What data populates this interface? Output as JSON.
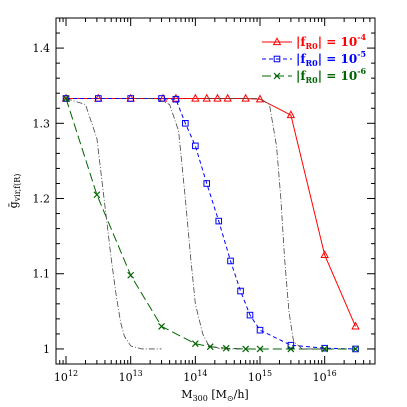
{
  "chart_data": {
    "type": "line",
    "xscale": "log",
    "xlim": [
      700000000000.0,
      6e+16
    ],
    "ylim": [
      0.98,
      1.44
    ],
    "xlabel": "M300 [M⊙/h]",
    "ylabel": "ḡvir,f(R)",
    "grid": false,
    "legend_position": "top-right",
    "x_ticks": [
      1000000000000.0,
      10000000000000.0,
      100000000000000.0,
      1000000000000000.0,
      1e+16
    ],
    "x_tick_labels": [
      {
        "base": "10",
        "exp": "12"
      },
      {
        "base": "10",
        "exp": "13"
      },
      {
        "base": "10",
        "exp": "14"
      },
      {
        "base": "10",
        "exp": "15"
      },
      {
        "base": "10",
        "exp": "16"
      }
    ],
    "y_ticks": [
      1.0,
      1.1,
      1.2,
      1.3,
      1.4
    ],
    "y_tick_labels": [
      "1",
      "1.1",
      "1.2",
      "1.3",
      "1.4"
    ],
    "series": [
      {
        "name": "|fR0| = 10⁻⁴",
        "legend": {
          "lhs": "|f",
          "sub": "R0",
          "rhs": "| = 10",
          "exp": "-4"
        },
        "color": "#ff0000",
        "marker": "triangle",
        "dash": "solid",
        "x": [
          1000000000000.0,
          3160000000000.0,
          10000000000000.0,
          31600000000000.0,
          50000000000000.0,
          100000000000000.0,
          150000000000000.0,
          220000000000000.0,
          316000000000000.0,
          600000000000000.0,
          1000000000000000.0,
          3000000000000000.0,
          1e+16,
          3e+16
        ],
        "y": [
          1.333,
          1.333,
          1.333,
          1.333,
          1.333,
          1.333,
          1.333,
          1.333,
          1.333,
          1.333,
          1.332,
          1.311,
          1.125,
          1.03
        ]
      },
      {
        "name": "|fR0| = 10⁻⁵",
        "legend": {
          "lhs": "|f",
          "sub": "R0",
          "rhs": "| = 10",
          "exp": "-5"
        },
        "color": "#0000ff",
        "marker": "square",
        "dash": "dashed",
        "x": [
          1000000000000.0,
          3160000000000.0,
          10000000000000.0,
          30000000000000.0,
          50000000000000.0,
          70000000000000.0,
          100000000000000.0,
          150000000000000.0,
          230000000000000.0,
          350000000000000.0,
          500000000000000.0,
          700000000000000.0,
          1000000000000000.0,
          3000000000000000.0,
          1e+16,
          3e+16
        ],
        "y": [
          1.333,
          1.333,
          1.333,
          1.333,
          1.332,
          1.3,
          1.27,
          1.22,
          1.17,
          1.117,
          1.077,
          1.045,
          1.025,
          1.005,
          1.001,
          1.0
        ]
      },
      {
        "name": "|fR0| = 10⁻⁶",
        "legend": {
          "lhs": "|f",
          "sub": "R0",
          "rhs": "| = 10",
          "exp": "-6"
        },
        "color": "#006400",
        "marker": "cross",
        "dash": "longdash",
        "x": [
          1000000000000.0,
          3000000000000.0,
          10000000000000.0,
          30000000000000.0,
          100000000000000.0,
          170000000000000.0,
          300000000000000.0,
          600000000000000.0,
          1000000000000000.0,
          3000000000000000.0,
          1e+16,
          3e+16
        ],
        "y": [
          1.333,
          1.205,
          1.098,
          1.03,
          1.007,
          1.003,
          1.001,
          1.0,
          1.0,
          1.0,
          1.0,
          1.0
        ]
      },
      {
        "color": "#444444",
        "marker": "none",
        "dash": "dashdot",
        "x": [
          1000000000000.0,
          2000000000000.0,
          3000000000000.0,
          4000000000000.0,
          5000000000000.0,
          6000000000000.0,
          7000000000000.0,
          8000000000000.0,
          10000000000000.0,
          15000000000000.0,
          30000000000000.0
        ],
        "y": [
          1.333,
          1.325,
          1.28,
          1.19,
          1.12,
          1.07,
          1.035,
          1.017,
          1.004,
          1.0,
          1.0
        ]
      },
      {
        "color": "#444444",
        "marker": "none",
        "dash": "dashdot",
        "x": [
          12000000000000.0,
          25000000000000.0,
          40000000000000.0,
          55000000000000.0,
          70000000000000.0,
          85000000000000.0,
          100000000000000.0,
          130000000000000.0,
          160000000000000.0,
          250000000000000.0,
          500000000000000.0
        ],
        "y": [
          1.333,
          1.333,
          1.325,
          1.29,
          1.2,
          1.12,
          1.06,
          1.02,
          1.005,
          1.0,
          1.0
        ]
      },
      {
        "color": "#444444",
        "marker": "none",
        "dash": "dashdot",
        "x": [
          150000000000000.0,
          500000000000000.0,
          1000000000000000.0,
          1400000000000000.0,
          1800000000000000.0,
          2100000000000000.0,
          2400000000000000.0,
          2800000000000000.0,
          3300000000000000.0,
          4500000000000000.0,
          1e+16
        ],
        "y": [
          1.333,
          1.333,
          1.333,
          1.325,
          1.27,
          1.2,
          1.12,
          1.05,
          1.01,
          1.0,
          1.0
        ]
      }
    ]
  }
}
